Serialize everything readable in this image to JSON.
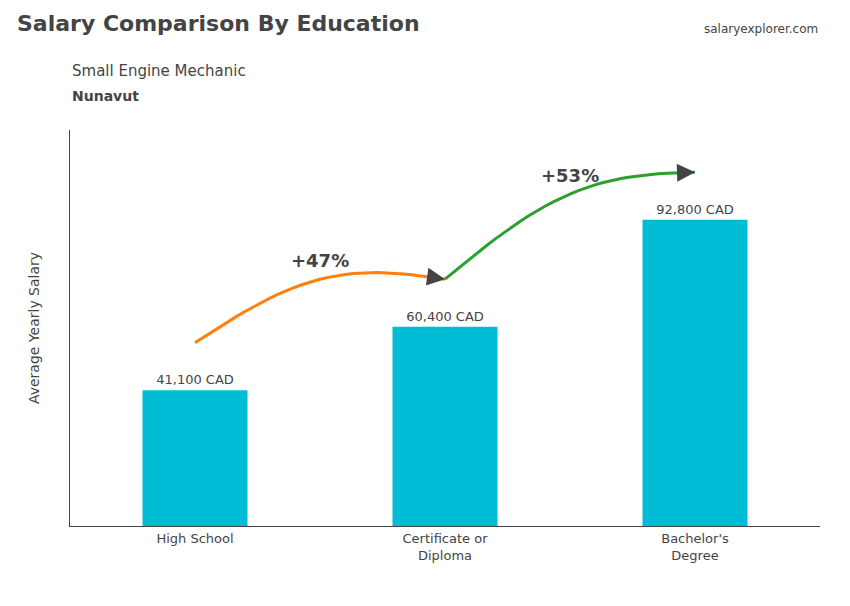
{
  "chart_data": {
    "type": "bar",
    "title": "Salary Comparison By Education",
    "subtitle": "Small Engine Mechanic",
    "ylabel": "Average Yearly Salary",
    "annotations": [
      {
        "text": "Nunavut"
      },
      {
        "text": "salaryexplorer.com"
      },
      {
        "text": "+47%",
        "from": 0,
        "to": 1
      },
      {
        "text": "+53%",
        "from": 1,
        "to": 2
      }
    ],
    "categories": [
      "High School",
      "Certificate or\nDiploma",
      "Bachelor's\nDegree"
    ],
    "values": [
      41100,
      60400,
      92800
    ],
    "value_labels": [
      "41,100 CAD",
      "60,400 CAD",
      "92,800 CAD"
    ],
    "data_labels": true,
    "color": "#00bcd4",
    "ylim": [
      0,
      120000
    ],
    "grid": false,
    "tick_labels": "x"
  }
}
